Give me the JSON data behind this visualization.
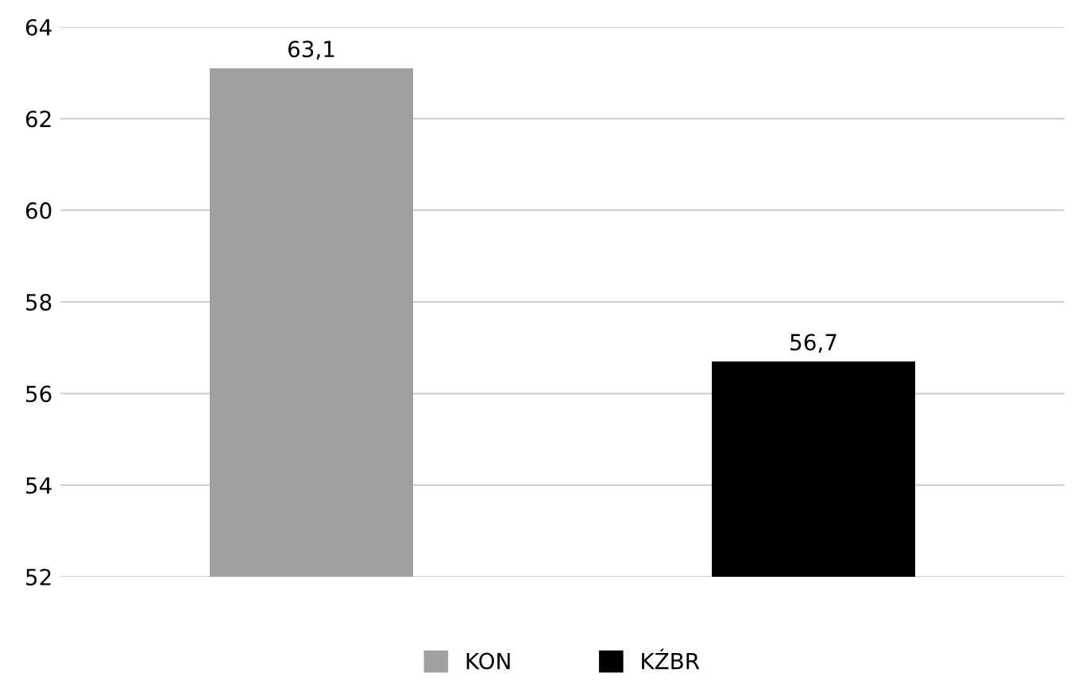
{
  "chart_data": {
    "type": "bar",
    "categories": [
      null,
      null
    ],
    "series": [
      {
        "name": "KON",
        "color": "#a0a0a0",
        "values": [
          63.1,
          null
        ],
        "value_labels": [
          "63,1",
          null
        ]
      },
      {
        "name": "KŹBR",
        "color": "#000000",
        "values": [
          null,
          56.7
        ],
        "value_labels": [
          null,
          "56,7"
        ]
      }
    ],
    "ylim": [
      52,
      64
    ],
    "yticks": [
      52,
      54,
      56,
      58,
      60,
      62,
      64
    ],
    "grid": "y",
    "legend": "bottom"
  }
}
